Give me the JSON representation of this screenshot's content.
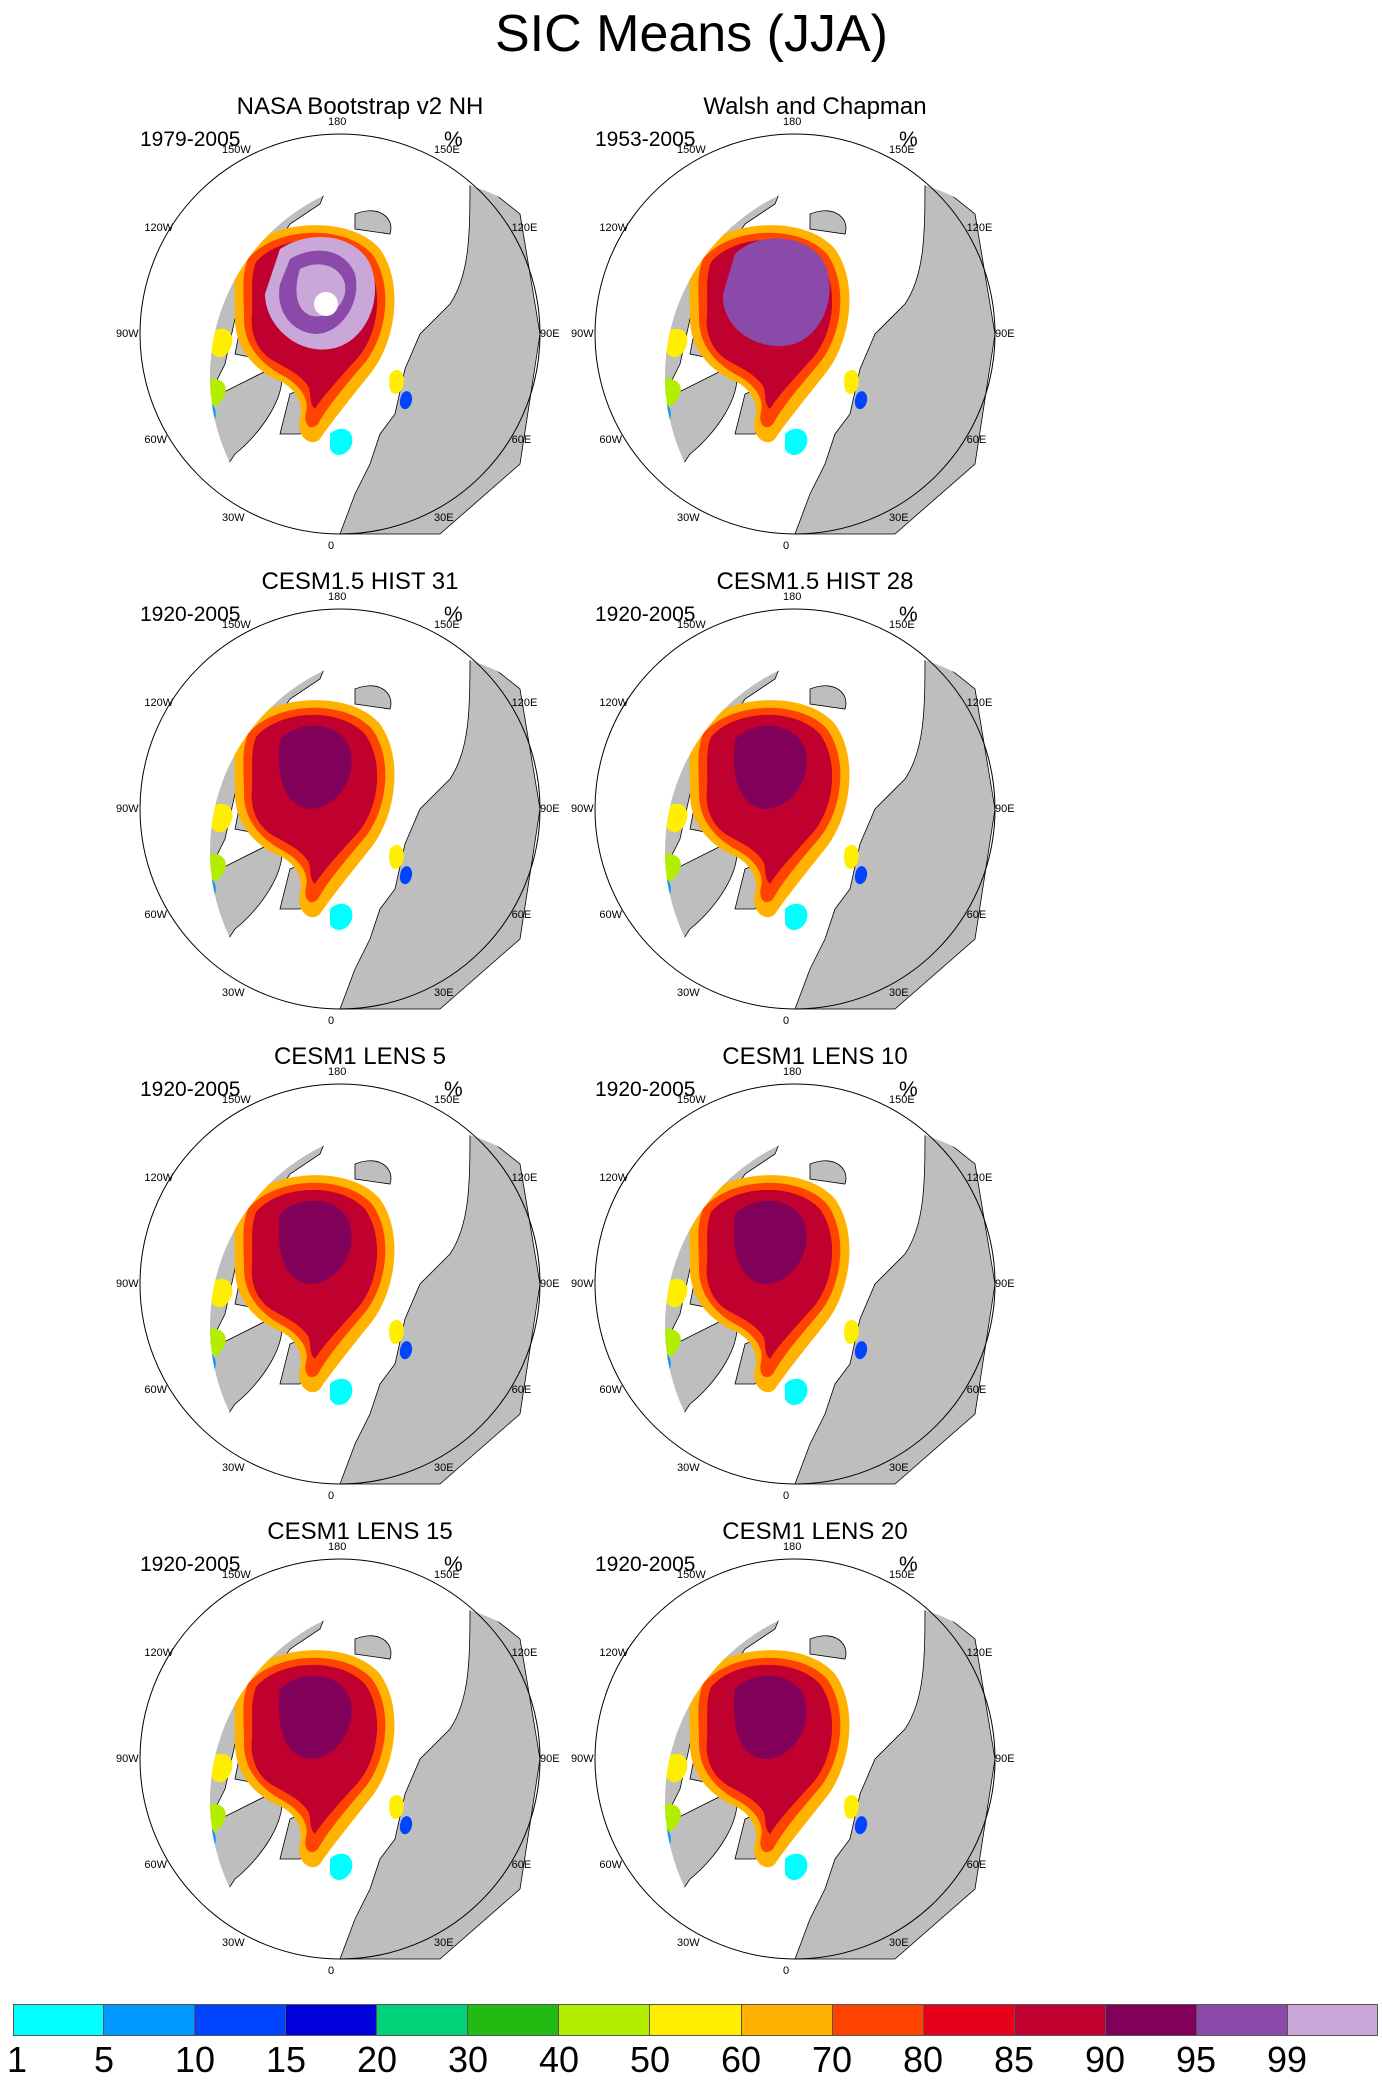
{
  "title": "SIC Means (JJA)",
  "unit": "%",
  "panels": [
    {
      "title": "NASA Bootstrap v2 NH",
      "period": "1979-2005",
      "style": "obs1"
    },
    {
      "title": "Walsh and Chapman",
      "period": "1953-2005",
      "style": "obs2"
    },
    {
      "title": "CESM1.5 HIST 31",
      "period": "1920-2005",
      "style": "model"
    },
    {
      "title": "CESM1.5 HIST 28",
      "period": "1920-2005",
      "style": "model"
    },
    {
      "title": "CESM1 LENS 5",
      "period": "1920-2005",
      "style": "model"
    },
    {
      "title": "CESM1 LENS 10",
      "period": "1920-2005",
      "style": "model"
    },
    {
      "title": "CESM1 LENS 15",
      "period": "1920-2005",
      "style": "model"
    },
    {
      "title": "CESM1 LENS 20",
      "period": "1920-2005",
      "style": "model"
    }
  ],
  "lon_labels": {
    "180": "180",
    "150E": "150E",
    "120E": "120E",
    "90E": "90E",
    "60E": "60E",
    "30E": "30E",
    "0": "0",
    "30W": "30W",
    "60W": "60W",
    "90W": "90W",
    "120W": "120W",
    "150W": "150W"
  },
  "colorbar": {
    "colors": [
      "#00ffff",
      "#0099ff",
      "#0044ff",
      "#0000dd",
      "#00d27a",
      "#22bb11",
      "#b3ee00",
      "#ffee00",
      "#ffb300",
      "#ff4400",
      "#e6001a",
      "#c0002e",
      "#80005a",
      "#8b4aaa",
      "#c9a8d9"
    ],
    "ticks": [
      "1",
      "5",
      "10",
      "15",
      "20",
      "30",
      "40",
      "50",
      "60",
      "70",
      "80",
      "85",
      "90",
      "95",
      "99"
    ]
  },
  "colors": {
    "land": "#bebebe",
    "ocean": "#ffffff",
    "outline": "#000000"
  }
}
